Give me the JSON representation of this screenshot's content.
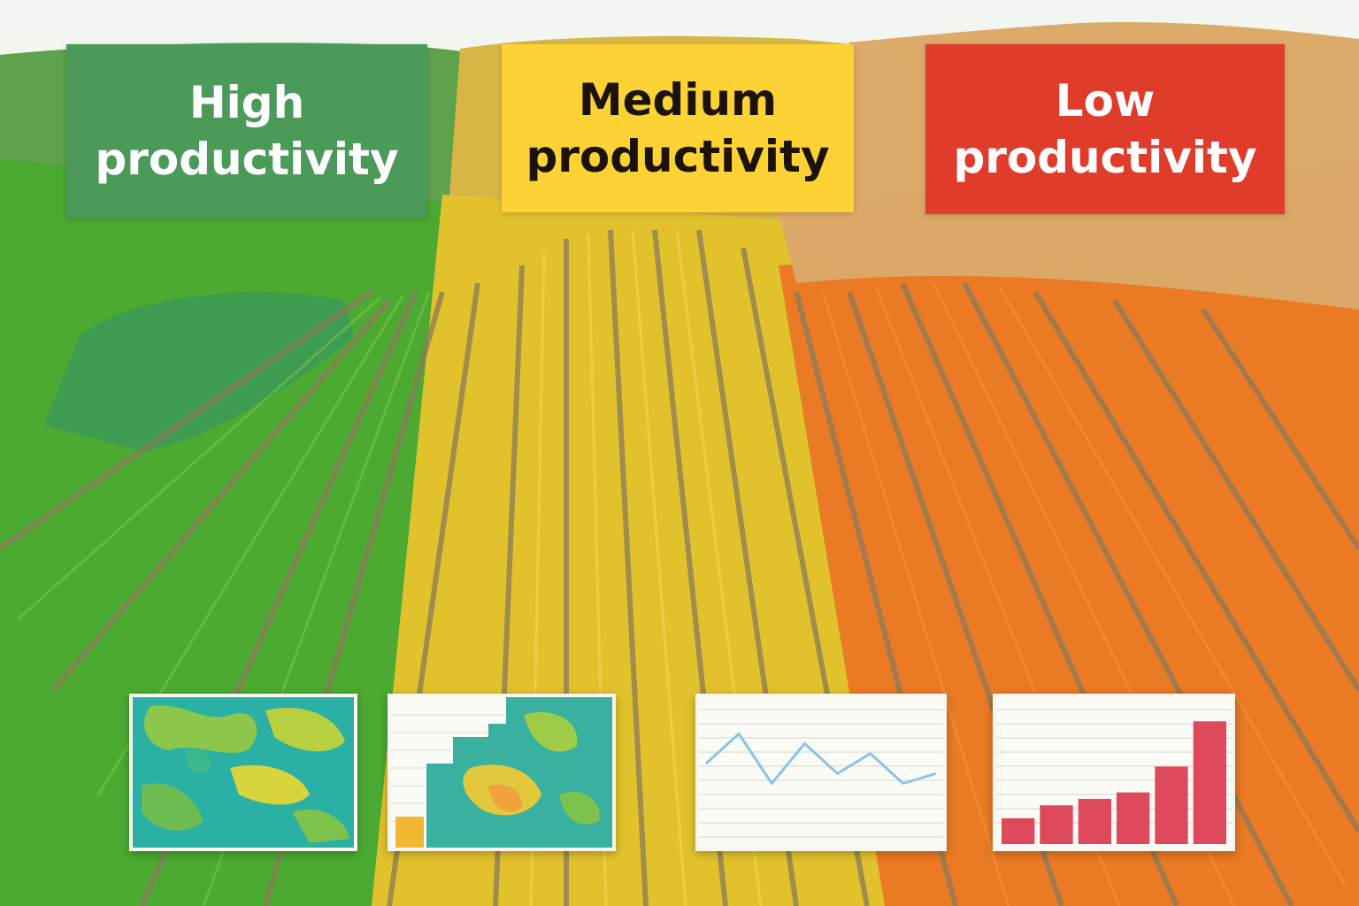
{
  "zones": {
    "high": {
      "line1": "High",
      "line2": "productivity",
      "color": "#4b9a5a"
    },
    "medium": {
      "line1": "Medium",
      "line2": "productivity",
      "color": "#fcd234"
    },
    "low": {
      "line1": "Low",
      "line2": "productivity",
      "color": "#e03c2c"
    }
  },
  "colors": {
    "field_green": "#4caa32",
    "field_yellow": "#e2c22c",
    "field_orange": "#ea7a24",
    "hillside": "#dca868",
    "furrow": "#8a7a58",
    "line_chart_stroke": "#8ac4ea",
    "bar_fill": "#de4a5c"
  },
  "charts": {
    "line": {
      "type": "line",
      "values": [
        4,
        7,
        2,
        6,
        3,
        5,
        2,
        3
      ]
    },
    "bar": {
      "type": "bar",
      "values": [
        2,
        3,
        3.5,
        4,
        6,
        9.5
      ]
    }
  }
}
